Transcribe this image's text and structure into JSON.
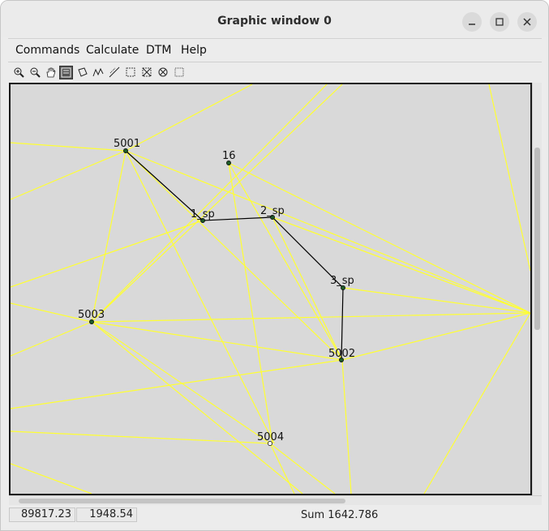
{
  "window": {
    "title": "Graphic window 0"
  },
  "titlebar_buttons": [
    {
      "icon": "minimize-icon"
    },
    {
      "icon": "maximize-icon"
    },
    {
      "icon": "close-icon"
    }
  ],
  "menu": [
    "Commands",
    "Calculate",
    "DTM",
    "Help"
  ],
  "toolbar": [
    "zoom-in-icon",
    "zoom-out-icon",
    "pan-hand-icon",
    "zoom-extent-icon",
    "rotate-view-icon",
    "profile-icon",
    "line-tool-icon",
    "select-area-icon",
    "clear-selection-icon",
    "refresh-icon",
    "frame-icon"
  ],
  "points": [
    {
      "label": "5001"
    },
    {
      "label": "16"
    },
    {
      "label": "1_sp"
    },
    {
      "label": "2_sp"
    },
    {
      "label": "3_sp"
    },
    {
      "label": "5003"
    },
    {
      "label": "5002"
    },
    {
      "label": "5004"
    }
  ],
  "colors": {
    "triangulation": "#ffff33",
    "traverse": "#000000",
    "canvas": "#d9d9d9"
  },
  "status": {
    "x": "89817.23",
    "y": "1948.54",
    "sum": "Sum 1642.786"
  }
}
